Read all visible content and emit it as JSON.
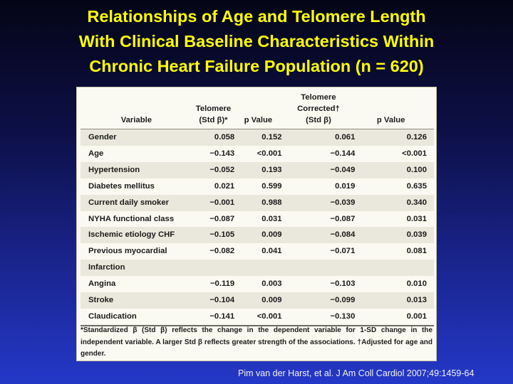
{
  "title": {
    "line1": "Relationships of Age and Telomere Length",
    "line2": "With Clinical Baseline Characteristics Within",
    "line3": "Chronic Heart Failure Population (n = 620)"
  },
  "table": {
    "headers": {
      "variable": "Variable",
      "telomere_top": "Telomere",
      "telomere_bottom": "(Std β)*",
      "p_value_1": "p Value",
      "corrected_top": "Telomere Corrected†",
      "corrected_bottom": "(Std β)",
      "p_value_2": "p Value"
    },
    "rows": [
      {
        "variable": "Gender",
        "telomere": "0.058",
        "p1": "0.152",
        "corrected": "0.061",
        "p2": "0.126"
      },
      {
        "variable": "Age",
        "telomere": "−0.143",
        "p1": "<0.001",
        "corrected": "−0.144",
        "p2": "<0.001"
      },
      {
        "variable": "Hypertension",
        "telomere": "−0.052",
        "p1": "0.193",
        "corrected": "−0.049",
        "p2": "0.100"
      },
      {
        "variable": "Diabetes mellitus",
        "telomere": "0.021",
        "p1": "0.599",
        "corrected": "0.019",
        "p2": "0.635"
      },
      {
        "variable": "Current daily smoker",
        "telomere": "−0.001",
        "p1": "0.988",
        "corrected": "−0.039",
        "p2": "0.340"
      },
      {
        "variable": "NYHA functional class",
        "telomere": "−0.087",
        "p1": "0.031",
        "corrected": "−0.087",
        "p2": "0.031"
      },
      {
        "variable": "Ischemic etiology CHF",
        "telomere": "−0.105",
        "p1": "0.009",
        "corrected": "−0.084",
        "p2": "0.039"
      },
      {
        "variable": "Previous myocardial",
        "telomere": "−0.082",
        "p1": "0.041",
        "corrected": "−0.071",
        "p2": "0.081"
      },
      {
        "variable": "Infarction",
        "telomere": "",
        "p1": "",
        "corrected": "",
        "p2": ""
      },
      {
        "variable": "Angina",
        "telomere": "−0.119",
        "p1": "0.003",
        "corrected": "−0.103",
        "p2": "0.010"
      },
      {
        "variable": "Stroke",
        "telomere": "−0.104",
        "p1": "0.009",
        "corrected": "−0.099",
        "p2": "0.013"
      },
      {
        "variable": "Claudication",
        "telomere": "−0.141",
        "p1": "<0.001",
        "corrected": "−0.130",
        "p2": "0.001"
      }
    ],
    "footnote": "*Standardized β (Std β) reflects the change in the dependent variable for 1-SD change in the independent variable. A larger Std β reflects greater strength of the associations. †Adjusted for age and gender."
  },
  "citation": "Pim van der Harst, et al. J Am Coll Cardiol 2007;49:1459-64"
}
